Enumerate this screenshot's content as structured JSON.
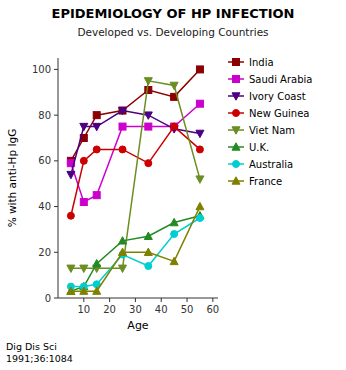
{
  "chart_data": {
    "type": "line",
    "title": "EPIDEMIOLOGY OF HP INFECTION",
    "subtitle": "Developed vs. Developing Countries",
    "xlabel": "Age",
    "ylabel": "% with anti-Hp IgG",
    "annotations": [
      "Dig Dis Sci",
      "1991;36:1084"
    ],
    "xlim": [
      0,
      62
    ],
    "ylim": [
      0,
      105
    ],
    "xticks": [
      10,
      20,
      30,
      40,
      50,
      60
    ],
    "yticks": [
      0,
      20,
      40,
      60,
      80,
      100
    ],
    "grid": false,
    "legend": "right",
    "x": [
      5,
      10,
      15,
      25,
      35,
      45,
      55
    ],
    "series": [
      {
        "name": "India",
        "color": "#8b0000",
        "marker": "square",
        "values": [
          60,
          70,
          80,
          82,
          91,
          88,
          100
        ]
      },
      {
        "name": "Saudi Arabia",
        "color": "#cc00cc",
        "marker": "square",
        "values": [
          59,
          42,
          45,
          75,
          75,
          75,
          85
        ]
      },
      {
        "name": "Ivory Coast",
        "color": "#4b0082",
        "marker": "triangle-down",
        "values": [
          54,
          75,
          75,
          82,
          80,
          74,
          72
        ]
      },
      {
        "name": "New Guinea",
        "color": "#cc0000",
        "marker": "circle",
        "values": [
          36,
          60,
          65,
          65,
          59,
          75,
          65
        ]
      },
      {
        "name": "Viet Nam",
        "color": "#6b8e23",
        "marker": "triangle-down",
        "values": [
          13,
          13,
          13,
          13,
          95,
          93,
          52
        ]
      },
      {
        "name": "U.K.",
        "color": "#228b22",
        "marker": "triangle-up",
        "values": [
          3,
          5,
          15,
          25,
          27,
          33,
          36
        ]
      },
      {
        "name": "Australia",
        "color": "#00ced1",
        "marker": "circle",
        "values": [
          5,
          5,
          6,
          19,
          14,
          28,
          35
        ]
      },
      {
        "name": "France",
        "color": "#808000",
        "marker": "triangle-up",
        "values": [
          3,
          3,
          3,
          20,
          20,
          16,
          40
        ]
      }
    ]
  }
}
